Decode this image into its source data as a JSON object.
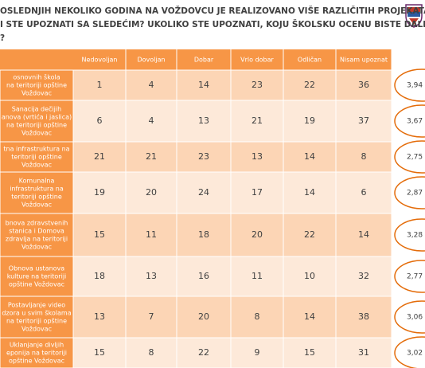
{
  "header": {
    "lines": [
      "OSLEDNJIH NEKOLIKO GODINA NA VOŽDOVCU JE REALIZOVANO VIŠE RAZLIČITIH PROJEKATA. RECITE",
      "I STE UPOZNATI SA SLEDEĆIM? UKOLIKO STE UPOZNATI, KOJU ŠKOLSKU OCENU BISTE DALI SVAKOM",
      "?"
    ]
  },
  "table": {
    "columns": [
      "Nedovoljan",
      "Dovoljan",
      "Dobar",
      "Vrlo dobar",
      "Odličan",
      "Nisam upoznat"
    ],
    "rows": [
      {
        "label": [
          "osnovnih škola",
          "na teritoriji opštine",
          "Voždovac"
        ],
        "values": [
          "1",
          "4",
          "14",
          "23",
          "22",
          "36"
        ],
        "score": "3,94"
      },
      {
        "label": [
          "Sanacija dečijih",
          "anova (vrtića i jaslica)",
          "na teritoriji opštine",
          "Voždovac"
        ],
        "values": [
          "6",
          "4",
          "13",
          "21",
          "19",
          "37"
        ],
        "score": "3,67"
      },
      {
        "label": [
          "tna infrastruktura na",
          "teritoriji opštine",
          "Voždovac"
        ],
        "values": [
          "21",
          "21",
          "23",
          "13",
          "14",
          "8"
        ],
        "score": "2,75"
      },
      {
        "label": [
          "Komunalna",
          "infrastruktura na",
          "teritoriji opštine",
          "Voždovac"
        ],
        "values": [
          "19",
          "20",
          "24",
          "17",
          "14",
          "6"
        ],
        "score": "2,87"
      },
      {
        "label": [
          "bnova zdravstvenih",
          "stanica i Domova",
          "zdravlja na teritoriji",
          "Voždovac"
        ],
        "values": [
          "15",
          "11",
          "18",
          "20",
          "22",
          "14"
        ],
        "score": "3,28"
      },
      {
        "label": [
          "Obnova ustanova",
          "kulture na teritoriji",
          "opštine Voždovac"
        ],
        "values": [
          "18",
          "13",
          "16",
          "11",
          "10",
          "32"
        ],
        "score": "2,77"
      },
      {
        "label": [
          "Postavljanje video",
          "dzora u svim školama",
          "na teritoriji opštine",
          "Voždovac"
        ],
        "values": [
          "13",
          "7",
          "20",
          "8",
          "14",
          "38"
        ],
        "score": "3,06"
      },
      {
        "label": [
          "Uklanjanje divljih",
          "eponija na teritoriji",
          "opštine Voždovac"
        ],
        "values": [
          "15",
          "8",
          "22",
          "9",
          "15",
          "31"
        ],
        "score": "3,02"
      }
    ]
  }
}
